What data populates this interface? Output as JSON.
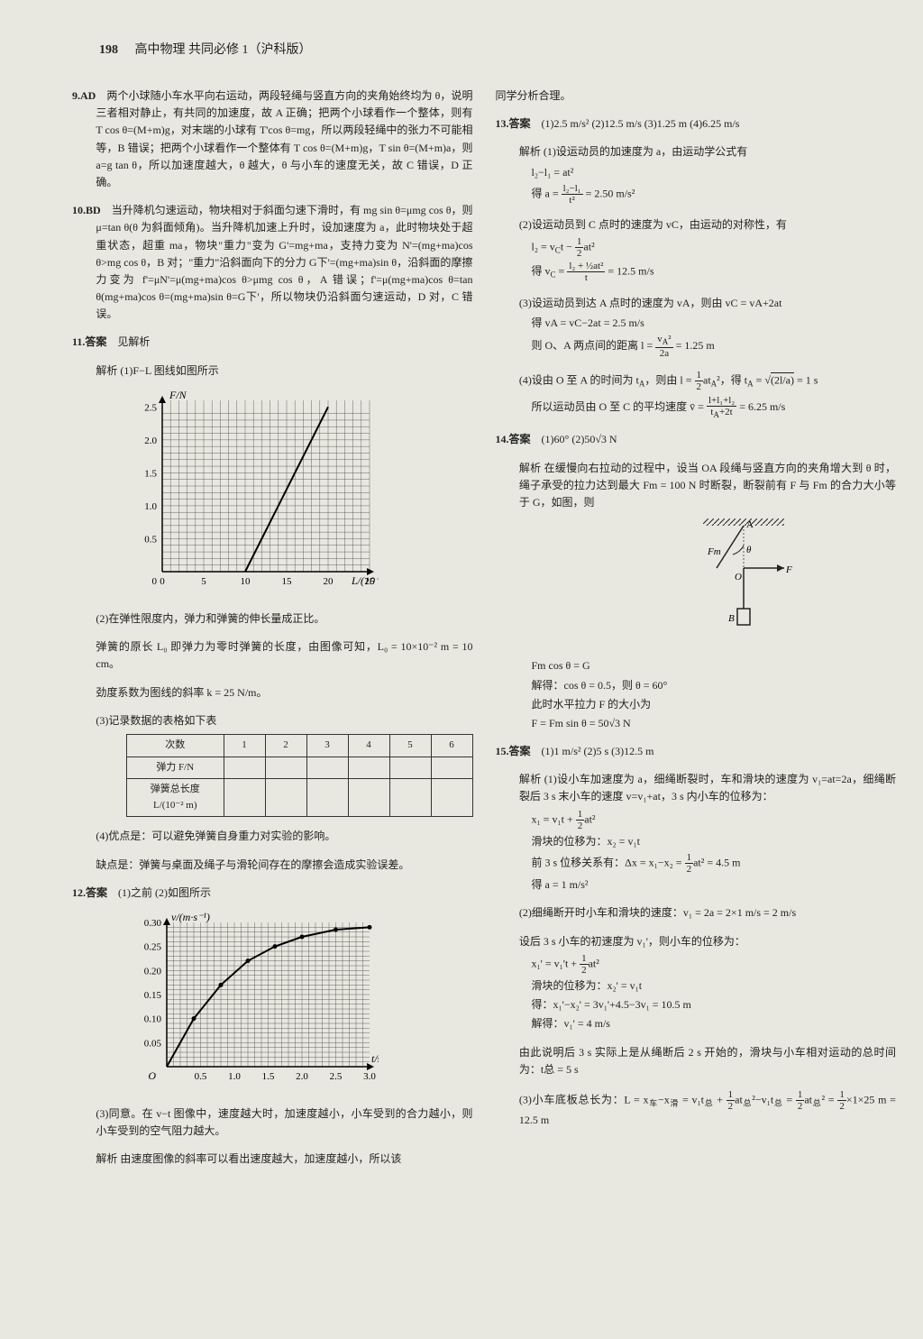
{
  "header": {
    "page": "198",
    "title": "高中物理 共同必修 1（沪科版）"
  },
  "q9": {
    "label": "9.AD",
    "text": "两个小球随小车水平向右运动，两段轻绳与竖直方向的夹角始终均为 θ，说明三者相对静止，有共同的加速度，故 A 正确；把两个小球看作一个整体，则有 T cos θ=(M+m)g，对末端的小球有 T'cos θ=mg，所以两段轻绳中的张力不可能相等，B 错误；把两个小球看作一个整体有 T cos θ=(M+m)g，T sin θ=(M+m)a，则 a=g tan θ，所以加速度越大，θ 越大，θ 与小车的速度无关，故 C 错误，D 正确。"
  },
  "q10": {
    "label": "10.BD",
    "text": "当升降机匀速运动，物块相对于斜面匀速下滑时，有 mg sin θ=μmg cos θ，则 μ=tan θ(θ 为斜面倾角)。当升降机加速上升时，设加速度为 a，此时物块处于超重状态，超重 ma，物块\"重力\"变为 G'=mg+ma，支持力变为 N'=(mg+ma)cos θ>mg cos θ，B 对；\"重力\"沿斜面向下的分力 G下'=(mg+ma)sin θ，沿斜面的摩擦力变为 f'=μN'=μ(mg+ma)cos θ>μmg cos θ，A 错误；f'=μ(mg+ma)cos θ=tan θ(mg+ma)cos θ=(mg+ma)sin θ=G下'，所以物块仍沿斜面匀速运动，D 对，C 错误。"
  },
  "q11": {
    "label": "11.答案",
    "ans": "见解析",
    "p1": "解析  (1)F−L 图线如图所示",
    "p2": "(2)在弹性限度内，弹力和弹簧的伸长量成正比。",
    "p3": "弹簧的原长 L₀ 即弹力为零时弹簧的长度，由图像可知，L₀ = 10×10⁻² m = 10 cm。",
    "p4": "劲度系数为图线的斜率 k = 25 N/m。",
    "p5": "(3)记录数据的表格如下表",
    "p6": "(4)优点是：可以避免弹簧自身重力对实验的影响。",
    "p7": "缺点是：弹簧与桌面及绳子与滑轮间存在的摩擦会造成实验误差。"
  },
  "chart1": {
    "ylabel": "F/N",
    "xlabel": "L/(10⁻² m)",
    "xmin": 0,
    "xmax": 25,
    "ymin": 0,
    "ymax": 2.6,
    "xticks": [
      0,
      5,
      10,
      15,
      20,
      25
    ],
    "yticks": [
      0.5,
      1.0,
      1.5,
      2.0,
      2.5
    ],
    "line_x1": 10,
    "line_y1": 0,
    "line_x2": 20,
    "line_y2": 2.5,
    "grid_color": "#444",
    "line_color": "#000",
    "bg": "#e8e8e0"
  },
  "table1": {
    "r1": "次数",
    "r2": "弹力 F/N",
    "r3": "弹簧总长度 L/(10⁻² m)",
    "cols": [
      "1",
      "2",
      "3",
      "4",
      "5",
      "6"
    ]
  },
  "q12": {
    "label": "12.答案",
    "ans": "(1)之前  (2)如图所示",
    "p1": "(3)同意。在 v−t 图像中，速度越大时，加速度越小，小车受到的合力越小，则小车受到的空气阻力越大。",
    "p2": "解析  由速度图像的斜率可以看出速度越大，加速度越小，所以该"
  },
  "chart2": {
    "ylabel": "v/(m·s⁻¹)",
    "xlabel": "t/s",
    "xmin": 0,
    "xmax": 3.0,
    "ymin": 0,
    "ymax": 0.3,
    "xticks": [
      0.5,
      1.0,
      1.5,
      2.0,
      2.5,
      3.0
    ],
    "yticks": [
      0.05,
      0.1,
      0.15,
      0.2,
      0.25,
      0.3
    ],
    "points": [
      [
        0,
        0
      ],
      [
        0.4,
        0.1
      ],
      [
        0.8,
        0.17
      ],
      [
        1.2,
        0.22
      ],
      [
        1.6,
        0.25
      ],
      [
        2.0,
        0.27
      ],
      [
        2.5,
        0.285
      ],
      [
        3.0,
        0.29
      ]
    ],
    "grid_color": "#444",
    "line_color": "#000"
  },
  "right_top": "同学分析合理。",
  "q13": {
    "label": "13.答案",
    "ans": "(1)2.5 m/s²  (2)12.5 m/s  (3)1.25 m  (4)6.25 m/s",
    "p1": "解析  (1)设运动员的加速度为 a，由运动学公式有",
    "e1": "l₂−l₁ = at²",
    "e2": "得 a = (l₂−l₁)/t² = 2.50 m/s²",
    "p2": "(2)设运动员到 C 点时的速度为 vC，由运动的对称性，有",
    "e3": "l₂ = vCt − ½at²",
    "e4": "得 vC = (l₂ + ½at²)/t = 12.5 m/s",
    "p3": "(3)设运动员到达 A 点时的速度为 vA，则由 vC = vA+2at",
    "e5": "得 vA = vC−2at = 2.5 m/s",
    "e6": "则 O、A 两点间的距离 l = vA²/2a = 1.25 m",
    "p4": "(4)设由 O 至 A 的时间为 tA，则由 l = ½atA²，得 tA = √(2l/a) = 1 s",
    "e7": "所以运动员由 O 至 C 的平均速度 v̄ = (l+l₁+l₂)/(tA+2t) = 6.25 m/s"
  },
  "q14": {
    "label": "14.答案",
    "ans": "(1)60°  (2)50√3 N",
    "p1": "解析  在缓慢向右拉动的过程中，设当 OA 段绳与竖直方向的夹角增大到 θ 时，绳子承受的拉力达到最大 Fm = 100 N 时断裂，断裂前有 F 与 Fm 的合力大小等于 G，如图，则",
    "e1": "Fm cos θ = G",
    "e2": "解得：cos θ = 0.5，则 θ = 60°",
    "e3": "此时水平拉力 F 的大小为",
    "e4": "F = Fm sin θ = 50√3 N"
  },
  "diag14": {
    "labels": {
      "A": "A",
      "O": "O",
      "F": "F",
      "Fm": "Fm",
      "B": "B",
      "theta": "θ"
    }
  },
  "q15": {
    "label": "15.答案",
    "ans": "(1)1 m/s²  (2)5 s  (3)12.5 m",
    "p1": "解析  (1)设小车加速度为 a，细绳断裂时，车和滑块的速度为 v₁=at=2a，细绳断裂后 3 s 末小车的速度 v=v₁+at，3 s 内小车的位移为：",
    "e1": "x₁ = v₁t + ½at²",
    "e2": "滑块的位移为：x₂ = v₁t",
    "e3": "前 3 s 位移关系有：Δx = x₁−x₂ = ½at² = 4.5 m",
    "e4": "得 a = 1 m/s²",
    "p2": "(2)细绳断开时小车和滑块的速度：v₁ = 2a = 2×1 m/s = 2 m/s",
    "p3": "设后 3 s 小车的初速度为 v₁'，则小车的位移为：",
    "e5": "x₁' = v₁'t + ½at²",
    "e6": "滑块的位移为：x₂' = v₁t",
    "e7": "得：x₁'−x₂' = 3v₁'+4.5−3v₁ = 10.5 m",
    "e8": "解得：v₁' = 4 m/s",
    "p4": "由此说明后 3 s 实际上是从绳断后 2 s 开始的，滑块与小车相对运动的总时间为：t总 = 5 s",
    "p5": "(3)小车底板总长为：L = x车−x滑 = v₁t总 + ½at总²−v₁t总 = ½at总² = ½×1×25 m = 12.5 m"
  }
}
